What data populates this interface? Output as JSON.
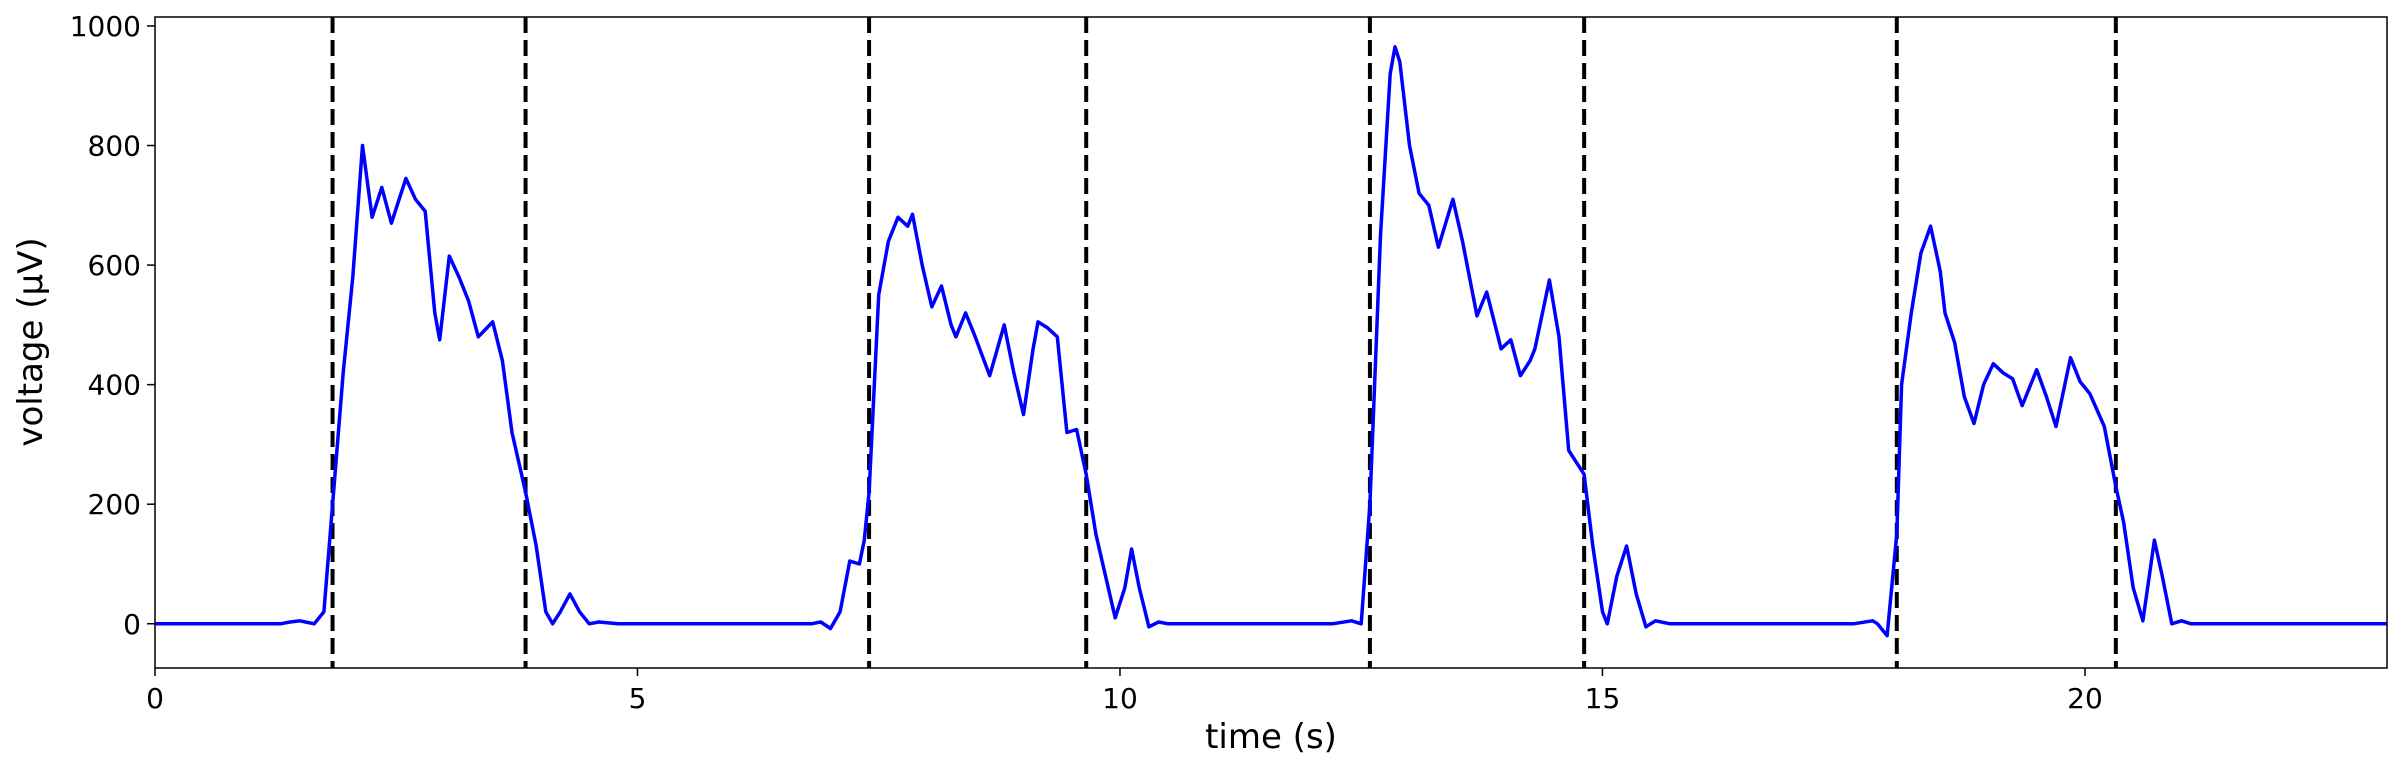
{
  "chart_data": {
    "type": "line",
    "xlabel": "time (s)",
    "ylabel": "voltage (μV)",
    "color": "#0000ff",
    "xlim": [
      0,
      23.13
    ],
    "ylim": [
      -74,
      1015
    ],
    "xticks": [
      0,
      5,
      10,
      15,
      20
    ],
    "yticks": [
      0,
      200,
      400,
      600,
      800,
      1000
    ],
    "vlines": [
      1.84,
      3.84,
      7.4,
      9.65,
      12.59,
      14.81,
      18.05,
      20.32
    ],
    "x": [
      0,
      1.3,
      1.4,
      1.5,
      1.65,
      1.75,
      1.84,
      1.95,
      2.05,
      2.15,
      2.25,
      2.35,
      2.45,
      2.6,
      2.7,
      2.8,
      2.9,
      2.95,
      3.05,
      3.15,
      3.25,
      3.35,
      3.5,
      3.6,
      3.7,
      3.84,
      3.95,
      4.05,
      4.12,
      4.2,
      4.3,
      4.4,
      4.5,
      4.6,
      4.8,
      6.8,
      6.9,
      7.0,
      7.1,
      7.2,
      7.3,
      7.35,
      7.4,
      7.5,
      7.6,
      7.7,
      7.8,
      7.85,
      7.95,
      8.05,
      8.15,
      8.25,
      8.3,
      8.4,
      8.5,
      8.65,
      8.8,
      8.9,
      9.0,
      9.1,
      9.15,
      9.25,
      9.35,
      9.45,
      9.55,
      9.65,
      9.75,
      9.85,
      9.95,
      10.05,
      10.12,
      10.2,
      10.3,
      10.4,
      10.5,
      12.2,
      12.4,
      12.5,
      12.59,
      12.7,
      12.8,
      12.85,
      12.9,
      13.0,
      13.1,
      13.2,
      13.3,
      13.45,
      13.55,
      13.7,
      13.8,
      13.95,
      14.05,
      14.15,
      14.25,
      14.3,
      14.45,
      14.55,
      14.65,
      14.75,
      14.81,
      14.9,
      15.0,
      15.05,
      15.15,
      15.25,
      15.35,
      15.45,
      15.55,
      15.7,
      17.6,
      17.8,
      17.85,
      17.95,
      18.05,
      18.1,
      18.2,
      18.3,
      18.4,
      18.5,
      18.55,
      18.65,
      18.75,
      18.85,
      18.95,
      19.05,
      19.15,
      19.25,
      19.35,
      19.5,
      19.6,
      19.7,
      19.85,
      19.95,
      20.05,
      20.2,
      20.32,
      20.4,
      20.5,
      20.6,
      20.72,
      20.8,
      20.9,
      21.0,
      21.1,
      23.13
    ],
    "values": [
      0,
      0,
      3,
      5,
      0,
      20,
      200,
      420,
      580,
      800,
      680,
      730,
      670,
      745,
      710,
      690,
      520,
      475,
      615,
      580,
      540,
      480,
      505,
      440,
      320,
      220,
      130,
      20,
      0,
      20,
      50,
      20,
      0,
      3,
      0,
      0,
      3,
      -8,
      20,
      105,
      100,
      140,
      220,
      550,
      640,
      680,
      665,
      685,
      600,
      530,
      565,
      500,
      480,
      520,
      480,
      415,
      500,
      420,
      350,
      460,
      505,
      495,
      480,
      320,
      325,
      250,
      150,
      80,
      10,
      60,
      125,
      60,
      -5,
      3,
      0,
      0,
      5,
      0,
      200,
      650,
      920,
      965,
      940,
      800,
      720,
      700,
      630,
      710,
      640,
      515,
      555,
      460,
      475,
      415,
      440,
      460,
      575,
      480,
      290,
      265,
      250,
      130,
      20,
      0,
      80,
      130,
      50,
      -5,
      5,
      0,
      0,
      5,
      0,
      -20,
      150,
      400,
      520,
      620,
      665,
      590,
      520,
      470,
      380,
      335,
      400,
      435,
      420,
      410,
      365,
      425,
      380,
      330,
      445,
      405,
      385,
      330,
      230,
      170,
      60,
      5,
      140,
      80,
      0,
      5,
      0,
      0
    ]
  }
}
